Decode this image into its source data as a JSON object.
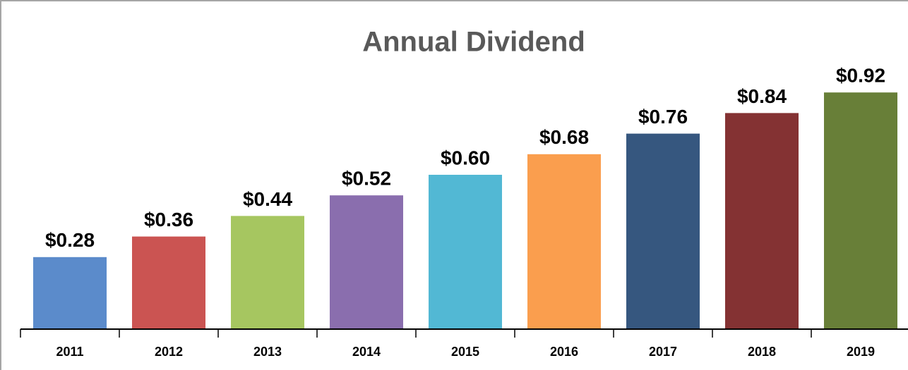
{
  "chart_data": {
    "type": "bar",
    "title": "Annual Dividend",
    "categories": [
      "2011",
      "2012",
      "2013",
      "2014",
      "2015",
      "2016",
      "2017",
      "2018",
      "2019"
    ],
    "values": [
      0.28,
      0.36,
      0.44,
      0.52,
      0.6,
      0.68,
      0.76,
      0.84,
      0.92
    ],
    "value_labels": [
      "$0.28",
      "$0.36",
      "$0.44",
      "$0.52",
      "$0.60",
      "$0.68",
      "$0.76",
      "$0.84",
      "$0.92"
    ],
    "colors": [
      "#5b8bcb",
      "#cb5452",
      "#a6c660",
      "#8a6eae",
      "#52b8d4",
      "#fa9e4e",
      "#36577f",
      "#843233",
      "#687f38"
    ],
    "ylim": [
      0,
      1
    ]
  }
}
